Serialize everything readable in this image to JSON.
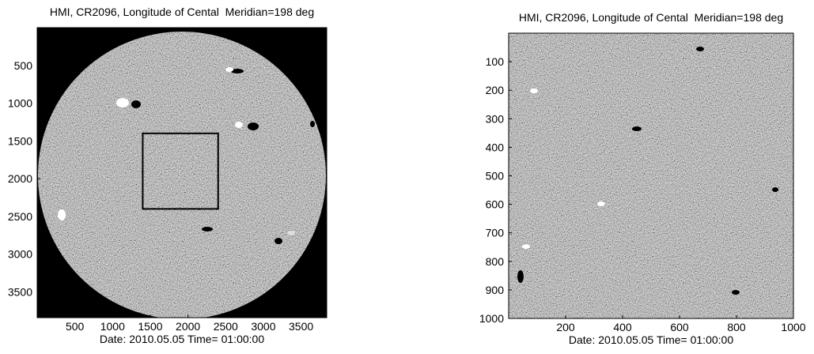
{
  "chart_data": [
    {
      "type": "image",
      "title": "HMI, CR2096, Longitude of Cental  Meridian=198 deg",
      "xlabel": "Date: 2010.05.05 Time= 01:00:00",
      "xlim": [
        0,
        3840
      ],
      "ylim": [
        0,
        3840
      ],
      "xticks": [
        500,
        1000,
        1500,
        2000,
        2500,
        3000,
        3500
      ],
      "yticks": [
        500,
        1000,
        1500,
        2000,
        2500,
        3000,
        3500
      ],
      "highlight_box": {
        "x": [
          1400,
          2400
        ],
        "y": [
          1400,
          2400
        ]
      }
    },
    {
      "type": "image",
      "title": "HMI, CR2096, Longitude of Cental  Meridian=198 deg",
      "xlabel": "Date: 2010.05.05 Time= 01:00:00",
      "xlim": [
        0,
        1000
      ],
      "ylim": [
        0,
        1000
      ],
      "xticks": [
        200,
        400,
        600,
        800,
        1000
      ],
      "yticks": [
        100,
        200,
        300,
        400,
        500,
        600,
        700,
        800,
        900,
        1000
      ]
    }
  ]
}
